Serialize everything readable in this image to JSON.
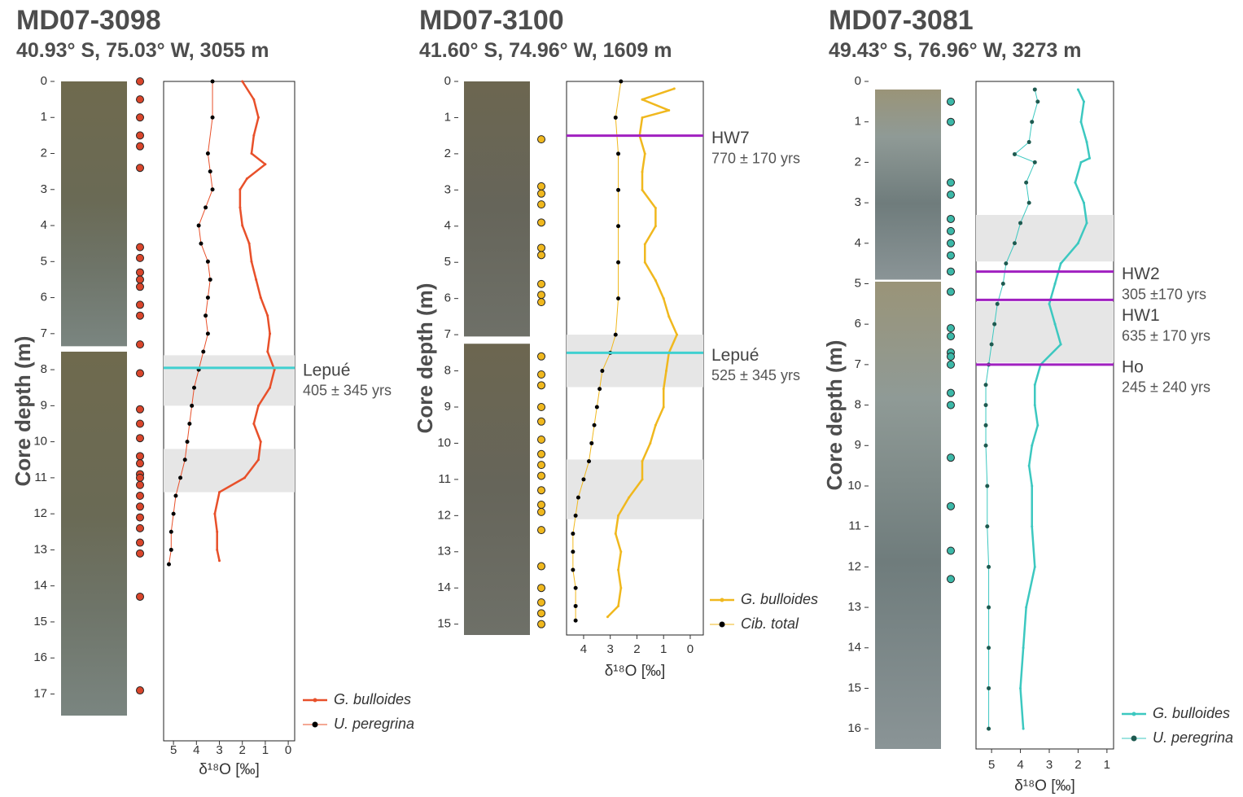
{
  "chart_data": [
    {
      "type": "line",
      "title": "MD07-3098",
      "subtitle": "40.93° S,  75.03° W, 3055 m",
      "ylabel": "Core depth (m)",
      "xlabel": "δ¹⁸O [‰]",
      "ylim": [
        0,
        18.3
      ],
      "yticks": [
        0,
        1,
        2,
        3,
        4,
        5,
        6,
        7,
        8,
        9,
        10,
        11,
        12,
        13,
        14,
        15,
        16,
        17
      ],
      "xlim": [
        5.43,
        -0.28
      ],
      "xticks": [
        5,
        4,
        3,
        2,
        1,
        0
      ],
      "core_sections": [
        [
          0,
          7.35
        ],
        [
          7.5,
          17.6
        ]
      ],
      "sample_depths": {
        "color": "#d9452b",
        "values": [
          0,
          0.5,
          1,
          1.5,
          1.8,
          2.4,
          4.6,
          4.9,
          5.3,
          5.5,
          5.7,
          6.2,
          6.5,
          7.3,
          8.1,
          9.1,
          9.5,
          9.9,
          10.4,
          10.6,
          10.9,
          11.0,
          11.2,
          11.5,
          11.8,
          12.1,
          12.4,
          12.8,
          13.1,
          14.3,
          16.9
        ]
      },
      "shaded_intervals": [
        [
          7.6,
          9.0
        ],
        [
          10.2,
          11.4
        ]
      ],
      "events": [
        {
          "name": "Lepué",
          "label": "405 ± 345 yrs",
          "depth": 7.95,
          "color": "#40d0d0"
        }
      ],
      "series": [
        {
          "name": "G. bulloides",
          "color": "#e8502a",
          "marker_color": "#e8502a",
          "line_width": 2.5,
          "marker_size": 1.5,
          "depth": [
            0,
            0.5,
            1,
            1.5,
            2,
            2.3,
            2.7,
            3,
            3.5,
            4,
            4.5,
            5,
            5.5,
            6,
            6.5,
            7,
            7.5,
            8,
            8.5,
            9,
            9.5,
            10,
            10.5,
            11,
            11.4,
            12,
            12.5,
            13,
            13.3
          ],
          "values": [
            2.0,
            1.5,
            1.3,
            1.5,
            1.6,
            1.0,
            1.8,
            2.1,
            2.1,
            2.0,
            1.7,
            1.6,
            1.4,
            1.2,
            0.9,
            0.8,
            0.9,
            0.6,
            0.8,
            1.3,
            1.5,
            1.2,
            1.3,
            1.9,
            3.0,
            3.2,
            3.1,
            3.1,
            3.0
          ]
        },
        {
          "name": "U. peregrina",
          "color": "#e8502a",
          "marker_color": "#000000",
          "line_width": 1,
          "marker_size": 2.5,
          "depth": [
            0,
            1,
            2,
            2.5,
            3,
            3.5,
            4,
            4.5,
            5,
            5.5,
            6,
            6.5,
            7,
            7.5,
            8,
            8.5,
            9,
            9.5,
            10,
            10.5,
            11,
            11.5,
            12,
            12.5,
            13,
            13.4
          ],
          "values": [
            3.3,
            3.3,
            3.5,
            3.4,
            3.3,
            3.6,
            3.9,
            3.8,
            3.5,
            3.4,
            3.5,
            3.6,
            3.5,
            3.7,
            3.9,
            4.1,
            4.2,
            4.3,
            4.4,
            4.5,
            4.7,
            4.9,
            5.0,
            5.1,
            5.1,
            5.2
          ]
        }
      ]
    },
    {
      "type": "line",
      "title": "MD07-3100",
      "subtitle": "41.60° S,  74.96° W, 1609 m",
      "ylabel": "Core depth (m)",
      "xlabel": "δ¹⁸O [‰]",
      "ylim": [
        0,
        15.3
      ],
      "yticks": [
        0,
        1,
        2,
        3,
        4,
        5,
        6,
        7,
        8,
        9,
        10,
        11,
        12,
        13,
        14,
        15
      ],
      "xlim": [
        4.64,
        -0.49
      ],
      "xticks": [
        4,
        3,
        2,
        1,
        0
      ],
      "core_sections": [
        [
          0,
          7.05
        ],
        [
          7.25,
          15.3
        ]
      ],
      "sample_depths": {
        "color": "#f0b81e",
        "values": [
          1.6,
          2.9,
          3.1,
          3.4,
          3.9,
          4.6,
          4.8,
          5.6,
          5.9,
          6.1,
          7.6,
          8.1,
          8.4,
          9.0,
          9.4,
          9.9,
          10.3,
          10.6,
          10.9,
          11.3,
          11.7,
          11.9,
          12.4,
          13.4,
          14.0,
          14.4,
          14.7,
          15.0
        ]
      },
      "shaded_intervals": [
        [
          7.0,
          8.45
        ],
        [
          10.45,
          12.1
        ]
      ],
      "events": [
        {
          "name": "HW7",
          "label": "770 ± 170 yrs",
          "depth": 1.5,
          "color": "#a020c0"
        },
        {
          "name": "Lepué",
          "label": "525 ± 345 yrs",
          "depth": 7.5,
          "color": "#40d0d0"
        }
      ],
      "series": [
        {
          "name": "G. bulloides",
          "color": "#f0b81e",
          "marker_color": "#f0b81e",
          "line_width": 2.5,
          "marker_size": 1.5,
          "depth": [
            0.2,
            0.5,
            0.8,
            1.0,
            1.5,
            2,
            2.5,
            3,
            3.5,
            4,
            4.5,
            5,
            5.5,
            6,
            6.5,
            7,
            7.5,
            8,
            8.5,
            9,
            9.5,
            10,
            10.5,
            11,
            11.5,
            12,
            12.5,
            13,
            13.5,
            14,
            14.5,
            14.8
          ],
          "values": [
            0.6,
            1.8,
            0.8,
            1.8,
            1.9,
            1.7,
            1.8,
            1.8,
            1.3,
            1.3,
            1.7,
            1.7,
            1.3,
            1.0,
            0.8,
            0.5,
            0.8,
            0.9,
            1.0,
            1.0,
            1.3,
            1.5,
            1.8,
            1.8,
            2.3,
            2.7,
            2.8,
            2.6,
            2.7,
            2.6,
            2.7,
            3.1
          ]
        },
        {
          "name": "Cib. total",
          "color": "#f0b81e",
          "marker_color": "#000000",
          "line_width": 1,
          "marker_size": 2.5,
          "depth": [
            0,
            1,
            2,
            3,
            4,
            5,
            6,
            7,
            7.5,
            8,
            8.5,
            9,
            9.5,
            10,
            10.5,
            11,
            11.5,
            12,
            12.5,
            13,
            13.5,
            14,
            14.5,
            14.9
          ],
          "values": [
            2.6,
            2.8,
            2.7,
            2.7,
            2.7,
            2.7,
            2.7,
            2.8,
            3.0,
            3.3,
            3.4,
            3.5,
            3.6,
            3.7,
            3.8,
            4.0,
            4.2,
            4.3,
            4.4,
            4.4,
            4.4,
            4.3,
            4.3,
            4.3
          ]
        }
      ]
    },
    {
      "type": "line",
      "title": "MD07-3081",
      "subtitle": "49.43° S, 76.96° W, 3273 m",
      "ylabel": "Core depth (m)",
      "xlabel": "δ¹⁸O [‰]",
      "ylim": [
        0,
        16.5
      ],
      "yticks": [
        0,
        1,
        2,
        3,
        4,
        5,
        6,
        7,
        8,
        9,
        10,
        11,
        12,
        13,
        14,
        15,
        16
      ],
      "xlim": [
        5.54,
        0.77
      ],
      "xticks": [
        5,
        4,
        3,
        2,
        1
      ],
      "core_sections": [
        [
          0.2,
          4.9
        ],
        [
          4.95,
          16.5
        ]
      ],
      "sample_depths": {
        "color": "#3cb8a8",
        "values": [
          0.5,
          1.0,
          2.5,
          2.8,
          3.4,
          3.7,
          4.0,
          4.3,
          4.7,
          5.2,
          6.1,
          6.3,
          6.7,
          6.8,
          7.0,
          7.7,
          8.0,
          9.3,
          10.5,
          11.6,
          12.3
        ]
      },
      "shaded_intervals": [
        [
          3.3,
          4.45
        ],
        [
          5.45,
          6.95
        ]
      ],
      "events": [
        {
          "name": "HW2",
          "label": "305 ±170 yrs",
          "depth": 4.7,
          "color": "#a020c0"
        },
        {
          "name": "HW1",
          "label": "635 ± 170 yrs",
          "depth": 5.4,
          "color": "#a020c0"
        },
        {
          "name": "Ho",
          "label": "245 ± 240 yrs",
          "depth": 7.0,
          "color": "#a020c0"
        }
      ],
      "series": [
        {
          "name": "G. bulloides",
          "color": "#3cc8c0",
          "marker_color": "#3cc8c0",
          "line_width": 2.5,
          "marker_size": 1.5,
          "depth": [
            0.2,
            0.5,
            1,
            1.5,
            1.9,
            2,
            2.5,
            3,
            3.5,
            4,
            4.5,
            5,
            5.5,
            6,
            6.5,
            7,
            7.5,
            8,
            8.5,
            9,
            9.5,
            10,
            11,
            12,
            13,
            14,
            15,
            16
          ],
          "values": [
            2.0,
            1.8,
            1.9,
            1.7,
            1.6,
            1.9,
            2.1,
            1.8,
            1.7,
            2.0,
            2.6,
            2.8,
            3.0,
            2.8,
            2.6,
            3.3,
            3.5,
            3.5,
            3.4,
            3.6,
            3.7,
            3.6,
            3.6,
            3.5,
            3.8,
            3.9,
            4.0,
            3.9
          ]
        },
        {
          "name": "U. peregrina",
          "color": "#3cc8c0",
          "marker_color": "#1e5a50",
          "line_width": 1,
          "marker_size": 2.5,
          "depth": [
            0.2,
            0.5,
            1,
            1.5,
            1.8,
            2,
            2.5,
            3,
            3.5,
            4,
            4.5,
            5,
            5.5,
            6,
            6.5,
            7,
            7.5,
            8,
            8.5,
            9,
            10,
            11,
            12,
            13,
            14,
            15,
            16
          ],
          "values": [
            3.5,
            3.4,
            3.6,
            3.7,
            4.2,
            3.5,
            3.8,
            3.7,
            4.0,
            4.2,
            4.5,
            4.6,
            4.8,
            4.9,
            5.0,
            5.1,
            5.2,
            5.2,
            5.2,
            5.2,
            5.15,
            5.15,
            5.1,
            5.1,
            5.1,
            5.1,
            5.1
          ]
        }
      ]
    }
  ]
}
